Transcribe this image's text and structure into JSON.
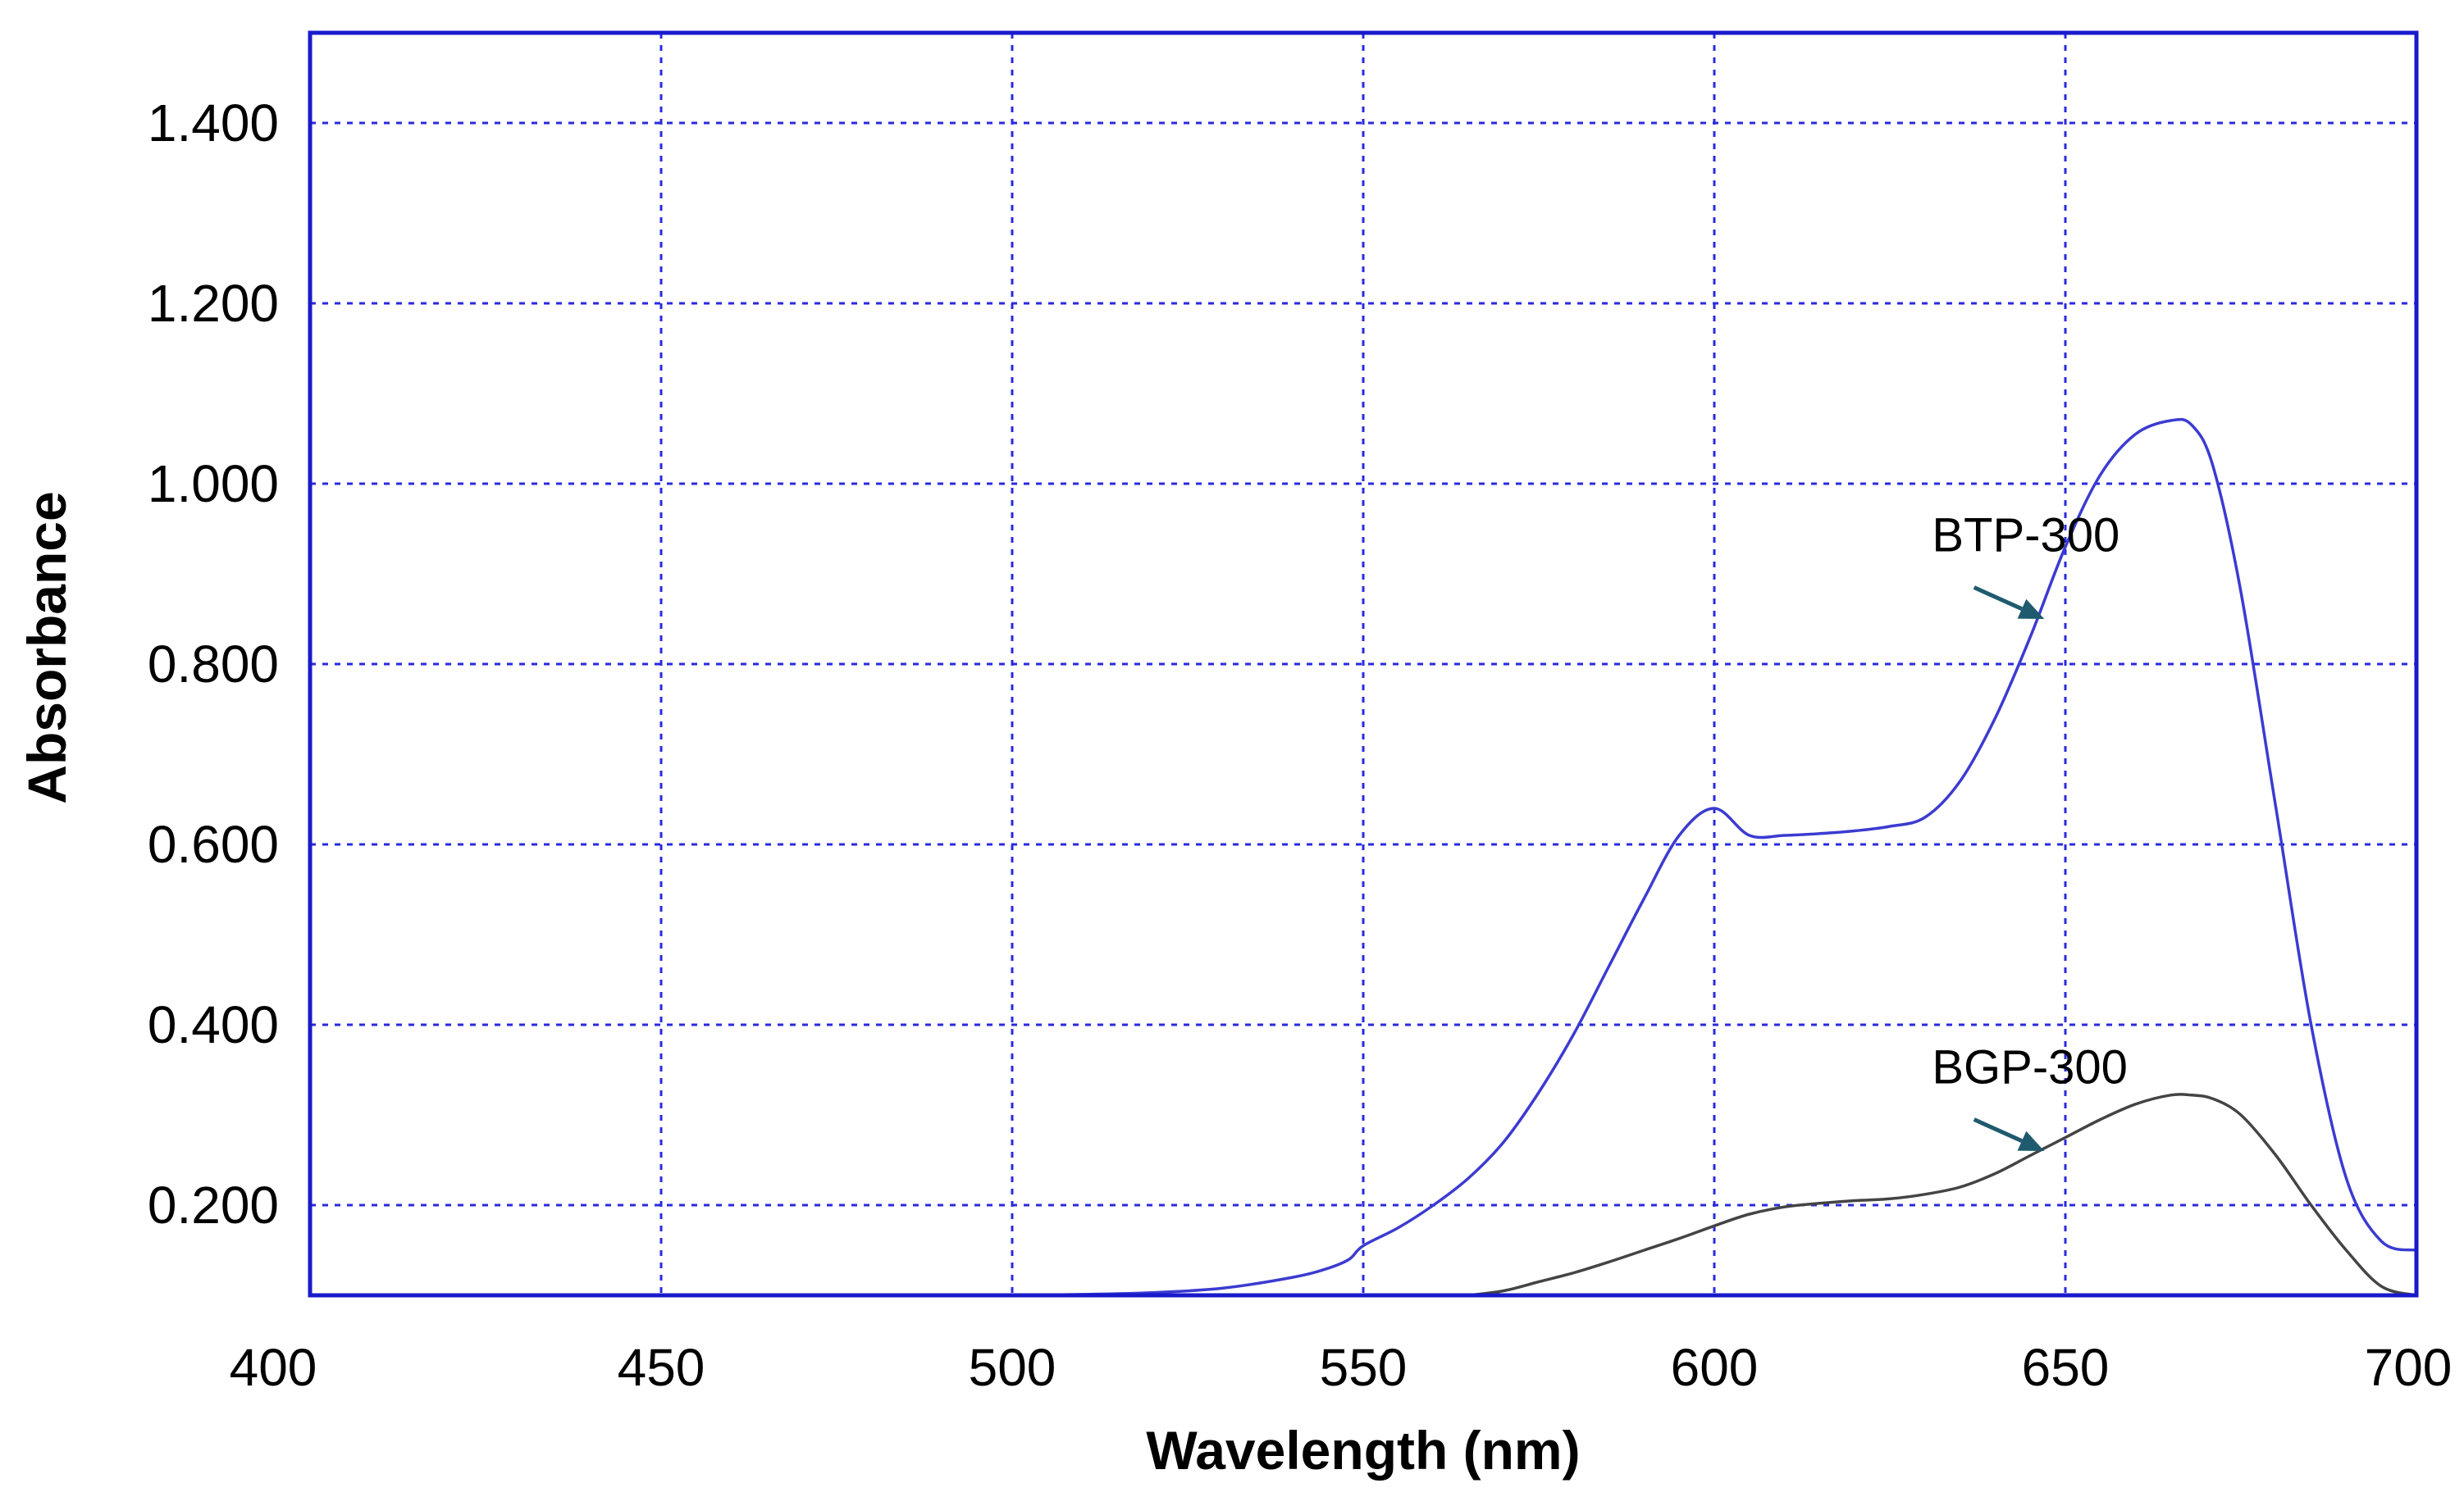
{
  "chart_data": {
    "type": "line",
    "xlabel": "Wavelength (nm)",
    "ylabel": "Absorbance",
    "xlim": [
      400,
      700
    ],
    "ylim": [
      0.1,
      1.5
    ],
    "xticks": [
      400,
      450,
      500,
      550,
      600,
      650,
      700
    ],
    "xtick_labels": [
      "400",
      "450",
      "500",
      "550",
      "600",
      "650",
      "700"
    ],
    "yticks": [
      0.2,
      0.4,
      0.6,
      0.8,
      1.0,
      1.2,
      1.4
    ],
    "ytick_labels": [
      "0.200",
      "0.400",
      "0.600",
      "0.800",
      "1.000",
      "1.200",
      "1.400"
    ],
    "grid": true,
    "colors": {
      "frame": "#1a1acc",
      "grid": "#2a2adf",
      "arrow": "#1f5a6e"
    },
    "series": [
      {
        "name": "BTP-300",
        "color": "#3b3bd1",
        "x": [
          500,
          510,
          520,
          530,
          540,
          545,
          548,
          550,
          555,
          560,
          565,
          570,
          575,
          580,
          585,
          590,
          595,
          600,
          605,
          610,
          615,
          620,
          625,
          630,
          635,
          640,
          645,
          650,
          655,
          660,
          665,
          668,
          671,
          675,
          680,
          685,
          690,
          695,
          700
        ],
        "y": [
          0.1,
          0.101,
          0.103,
          0.108,
          0.12,
          0.13,
          0.14,
          0.155,
          0.175,
          0.2,
          0.23,
          0.27,
          0.325,
          0.39,
          0.465,
          0.54,
          0.61,
          0.64,
          0.61,
          0.61,
          0.612,
          0.615,
          0.62,
          0.63,
          0.67,
          0.74,
          0.83,
          0.93,
          1.01,
          1.055,
          1.07,
          1.065,
          1.02,
          0.88,
          0.64,
          0.4,
          0.23,
          0.16,
          0.15
        ]
      },
      {
        "name": "BGP-300",
        "color": "#444444",
        "x": [
          565,
          570,
          575,
          580,
          585,
          590,
          595,
          600,
          605,
          610,
          615,
          620,
          625,
          630,
          635,
          640,
          645,
          650,
          655,
          660,
          665,
          668,
          671,
          675,
          680,
          685,
          690,
          695,
          700
        ],
        "y": [
          0.1,
          0.105,
          0.115,
          0.125,
          0.137,
          0.15,
          0.163,
          0.177,
          0.19,
          0.198,
          0.202,
          0.205,
          0.207,
          0.212,
          0.22,
          0.235,
          0.255,
          0.275,
          0.295,
          0.312,
          0.322,
          0.322,
          0.318,
          0.3,
          0.255,
          0.2,
          0.15,
          0.11,
          0.095
        ]
      }
    ],
    "annotations": [
      {
        "text": "BTP-300",
        "series": "BTP-300",
        "label_at": [
          631,
          0.925
        ],
        "arrow_from": [
          637,
          0.885
        ],
        "arrow_to": [
          647,
          0.85
        ]
      },
      {
        "text": "BGP-300",
        "series": "BGP-300",
        "label_at": [
          631,
          0.335
        ],
        "arrow_from": [
          637,
          0.295
        ],
        "arrow_to": [
          647,
          0.26
        ]
      }
    ]
  }
}
